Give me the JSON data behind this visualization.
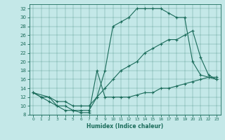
{
  "xlabel": "Humidex (Indice chaleur)",
  "bg_color": "#c4e8e8",
  "line_color": "#1a6b5a",
  "xlim": [
    -0.5,
    23.5
  ],
  "ylim": [
    8,
    33
  ],
  "xticks": [
    0,
    1,
    2,
    3,
    4,
    5,
    6,
    7,
    8,
    9,
    10,
    11,
    12,
    13,
    14,
    15,
    16,
    17,
    18,
    19,
    20,
    21,
    22,
    23
  ],
  "yticks": [
    8,
    10,
    12,
    14,
    16,
    18,
    20,
    22,
    24,
    26,
    28,
    30,
    32
  ],
  "line1_x": [
    0,
    1,
    2,
    3,
    4,
    5,
    6,
    7,
    8,
    9,
    10,
    11,
    12,
    13,
    14,
    15,
    16,
    17,
    18,
    19,
    20,
    21,
    22,
    23
  ],
  "line1_y": [
    13,
    12,
    12,
    10,
    10,
    9,
    9,
    9,
    12,
    18,
    28,
    29,
    30,
    32,
    32,
    32,
    32,
    31,
    30,
    30,
    20,
    17,
    16.5,
    16
  ],
  "line2_x": [
    0,
    2,
    3,
    4,
    5,
    6,
    7,
    8,
    9,
    10,
    11,
    12,
    13,
    14,
    15,
    16,
    17,
    18,
    19,
    20,
    21,
    22,
    23
  ],
  "line2_y": [
    13,
    12,
    11,
    11,
    10,
    10,
    10,
    12,
    14,
    16,
    18,
    19,
    20,
    22,
    23,
    24,
    25,
    25,
    26,
    27,
    21,
    17,
    16
  ],
  "line3_x": [
    0,
    1,
    2,
    3,
    4,
    5,
    6,
    7,
    8,
    9,
    10,
    11,
    12,
    13,
    14,
    15,
    16,
    17,
    18,
    19,
    20,
    21,
    22,
    23
  ],
  "line3_y": [
    13,
    12,
    11,
    10,
    9,
    9,
    8.5,
    8.5,
    18,
    12,
    12,
    12,
    12,
    12.5,
    13,
    13,
    14,
    14,
    14.5,
    15,
    15.5,
    16,
    16.5,
    16.5
  ]
}
